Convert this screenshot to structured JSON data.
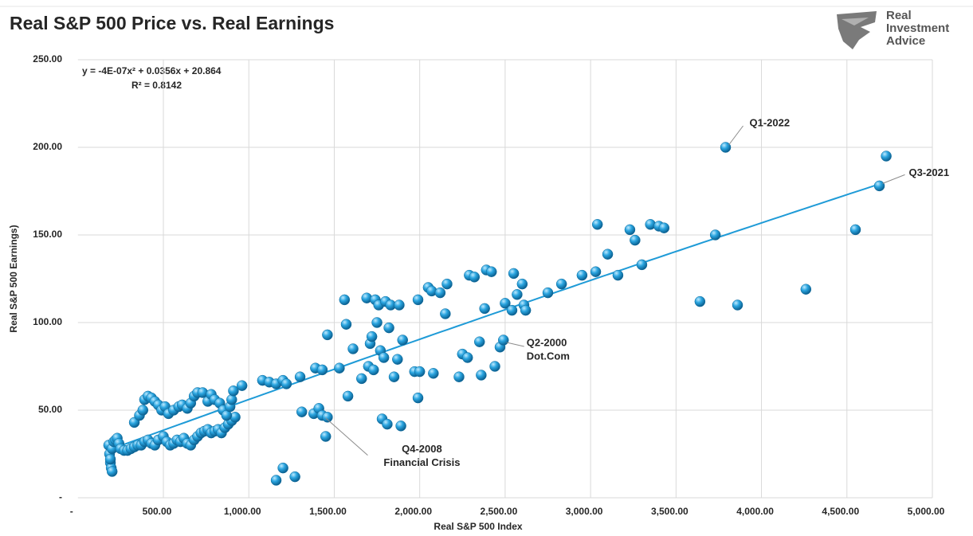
{
  "chart_data": {
    "type": "scatter",
    "title": "Real S&P 500 Price vs. Real Earnings",
    "logo_text": [
      "Real",
      "Investment",
      "Advice"
    ],
    "x_label": "Real S&P 500 Index",
    "y_label": "Real S&P 500 Earnings)",
    "color": "#1f9bd7",
    "grid": true,
    "xlim": [
      0,
      5000
    ],
    "ylim": [
      0,
      250
    ],
    "xticks": [
      {
        "value": 0,
        "label": "-"
      },
      {
        "value": 500,
        "label": "500.00"
      },
      {
        "value": 1000,
        "label": "1,000.00"
      },
      {
        "value": 1500,
        "label": "1,500.00"
      },
      {
        "value": 2000,
        "label": "2,000.00"
      },
      {
        "value": 2500,
        "label": "2,500.00"
      },
      {
        "value": 3000,
        "label": "3,000.00"
      },
      {
        "value": 3500,
        "label": "3,500.00"
      },
      {
        "value": 4000,
        "label": "4,000.00"
      },
      {
        "value": 4500,
        "label": "4,500.00"
      },
      {
        "value": 5000,
        "label": "5,000.00"
      }
    ],
    "yticks": [
      {
        "value": 0,
        "label": "-"
      },
      {
        "value": 50,
        "label": "50.00"
      },
      {
        "value": 100,
        "label": "100.00"
      },
      {
        "value": 150,
        "label": "150.00"
      },
      {
        "value": 200,
        "label": "200.00"
      },
      {
        "value": 250,
        "label": "250.00"
      }
    ],
    "trendline": {
      "equation": "y = -4E-07x² + 0.0356x + 20.864",
      "r_squared": "R² = 0.8142",
      "coefficients": [
        -4e-07,
        0.0356,
        20.864
      ],
      "x_range": [
        180,
        4700
      ],
      "color": "#1f9bd7"
    },
    "annotations": [
      {
        "text": [
          "Q1-2022"
        ],
        "x": 3790,
        "y": 200
      },
      {
        "text": [
          "Q3-2021"
        ],
        "x": 4690,
        "y": 178
      },
      {
        "text": [
          "Q2-2000",
          "Dot.Com"
        ],
        "x": 2490,
        "y": 90
      },
      {
        "text": [
          "Q4-2008",
          "Financial Crisis"
        ],
        "x": 1430,
        "y": 47
      }
    ],
    "x": [
      180,
      185,
      190,
      195,
      200,
      190,
      200,
      210,
      220,
      230,
      240,
      250,
      270,
      290,
      310,
      330,
      350,
      370,
      390,
      410,
      430,
      450,
      470,
      500,
      520,
      540,
      560,
      580,
      600,
      620,
      640,
      660,
      680,
      700,
      720,
      740,
      760,
      780,
      800,
      820,
      840,
      860,
      880,
      900,
      920,
      330,
      360,
      380,
      390,
      410,
      430,
      450,
      470,
      490,
      510,
      530,
      560,
      590,
      610,
      640,
      660,
      680,
      700,
      730,
      760,
      780,
      800,
      830,
      850,
      870,
      890,
      900,
      910,
      960,
      1080,
      1120,
      1160,
      1200,
      1220,
      1300,
      1390,
      1430,
      1530,
      1310,
      1380,
      1410,
      1430,
      1460,
      1450,
      1160,
      1200,
      1270,
      1460,
      1560,
      1570,
      1580,
      1610,
      1660,
      1690,
      1700,
      1710,
      1720,
      1730,
      1740,
      1750,
      1760,
      1770,
      1780,
      1790,
      1810,
      1800,
      1820,
      1830,
      1850,
      1870,
      1880,
      1890,
      1900,
      1970,
      1990,
      1990,
      2000,
      2050,
      2070,
      2080,
      2120,
      2150,
      2160,
      2230,
      2250,
      2280,
      2290,
      2320,
      2350,
      2360,
      2380,
      2390,
      2420,
      2440,
      2470,
      2490,
      2500,
      2540,
      2550,
      2570,
      2600,
      2610,
      2620,
      2750,
      2830,
      2950,
      3030,
      3040,
      3100,
      3160,
      3230,
      3260,
      3300,
      3350,
      3400,
      3430,
      3640,
      3730,
      3790,
      3860,
      4260,
      4550,
      4690,
      4730
    ],
    "values": [
      30,
      25,
      20,
      17,
      15,
      22,
      28,
      32,
      33,
      34,
      31,
      28,
      27,
      27,
      28,
      29,
      30,
      30,
      32,
      33,
      31,
      30,
      33,
      35,
      32,
      30,
      31,
      33,
      32,
      34,
      31,
      30,
      33,
      35,
      37,
      38,
      39,
      37,
      38,
      39,
      37,
      40,
      42,
      44,
      46,
      43,
      47,
      50,
      56,
      58,
      57,
      55,
      53,
      50,
      52,
      48,
      50,
      52,
      53,
      51,
      54,
      58,
      60,
      60,
      55,
      59,
      56,
      54,
      50,
      47,
      52,
      56,
      61,
      64,
      67,
      66,
      65,
      67,
      65,
      69,
      74,
      73,
      74,
      49,
      48,
      51,
      47,
      46,
      35,
      10,
      17,
      12,
      93,
      113,
      99,
      58,
      85,
      68,
      114,
      75,
      88,
      92,
      73,
      113,
      100,
      110,
      84,
      45,
      80,
      42,
      112,
      97,
      110,
      69,
      79,
      110,
      41,
      90,
      72,
      57,
      113,
      72,
      120,
      118,
      71,
      117,
      105,
      122,
      69,
      82,
      80,
      127,
      126,
      89,
      70,
      108,
      130,
      129,
      75,
      86,
      90,
      111,
      107,
      128,
      116,
      122,
      110,
      107,
      117,
      122,
      127,
      129,
      156,
      139,
      127,
      153,
      147,
      133,
      156,
      155,
      154,
      112,
      150,
      200,
      110,
      119,
      153,
      178,
      195
    ]
  }
}
